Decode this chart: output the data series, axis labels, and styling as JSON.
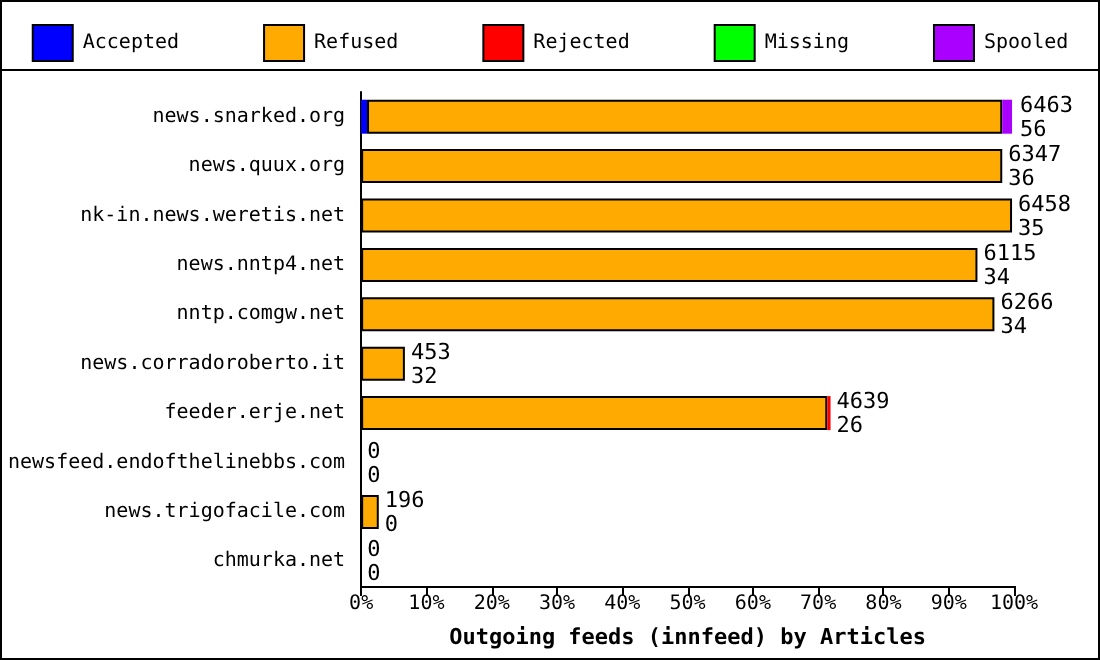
{
  "chart_data": {
    "type": "bar",
    "orientation": "horizontal",
    "stacked": true,
    "xlabel": "Outgoing feeds (innfeed) by Articles",
    "categories": [
      "news.snarked.org",
      "news.quux.org",
      "nk-in.news.weretis.net",
      "news.nntp4.net",
      "nntp.comgw.net",
      "news.corradoroberto.it",
      "feeder.erje.net",
      "newsfeed.endofthelinebbs.com",
      "news.trigofacile.com",
      "chmurka.net"
    ],
    "series": [
      {
        "name": "Accepted",
        "color": "#0000ff",
        "values": [
          0.9,
          0,
          0,
          0,
          0,
          0,
          0,
          0,
          0,
          0
        ]
      },
      {
        "name": "Refused",
        "color": "#ffaa00",
        "values": [
          97.3,
          98.2,
          99.7,
          94.4,
          97,
          6.7,
          71.4,
          0,
          2.7,
          0
        ]
      },
      {
        "name": "Rejected",
        "color": "#ff0000",
        "values": [
          0,
          0,
          0,
          0,
          0,
          0,
          0.5,
          0,
          0,
          0
        ]
      },
      {
        "name": "Missing",
        "color": "#00ff00",
        "values": [
          0,
          0,
          0,
          0,
          0,
          0,
          0,
          0,
          0,
          0
        ]
      },
      {
        "name": "Spooled",
        "color": "#aa00ff",
        "values": [
          1.5,
          0,
          0,
          0,
          0,
          0,
          0,
          0,
          0,
          0
        ]
      }
    ],
    "xlim": [
      0,
      100
    ],
    "xticks": [
      {
        "value": 0,
        "label": "0%"
      },
      {
        "value": 10,
        "label": "10%"
      },
      {
        "value": 20,
        "label": "20%"
      },
      {
        "value": 30,
        "label": "30%"
      },
      {
        "value": 40,
        "label": "40%"
      },
      {
        "value": 50,
        "label": "50%"
      },
      {
        "value": 60,
        "label": "60%"
      },
      {
        "value": 70,
        "label": "70%"
      },
      {
        "value": 80,
        "label": "80%"
      },
      {
        "value": 90,
        "label": "90%"
      },
      {
        "value": 100,
        "label": "100%"
      }
    ],
    "annotations": [
      {
        "text": "6463\n56",
        "x": 100,
        "y": "news.snarked.org"
      },
      {
        "text": "6347\n36",
        "x": 98.2,
        "y": "news.quux.org"
      },
      {
        "text": "6458\n35",
        "x": 99.7,
        "y": "nk-in.news.weretis.net"
      },
      {
        "text": "6115\n34",
        "x": 94.4,
        "y": "news.nntp4.net"
      },
      {
        "text": "6266\n34",
        "x": 97,
        "y": "nntp.comgw.net"
      },
      {
        "text": "453\n32",
        "x": 6.7,
        "y": "news.corradoroberto.it"
      },
      {
        "text": "4639\n26",
        "x": 71.9,
        "y": "feeder.erje.net"
      },
      {
        "text": "0\n0",
        "x": 0,
        "y": "newsfeed.endofthelinebbs.com"
      },
      {
        "text": "196\n0",
        "x": 2.7,
        "y": "news.trigofacile.com"
      },
      {
        "text": "0\n0",
        "x": 0,
        "y": "chmurka.net"
      }
    ],
    "legend": "top",
    "grid": false
  }
}
